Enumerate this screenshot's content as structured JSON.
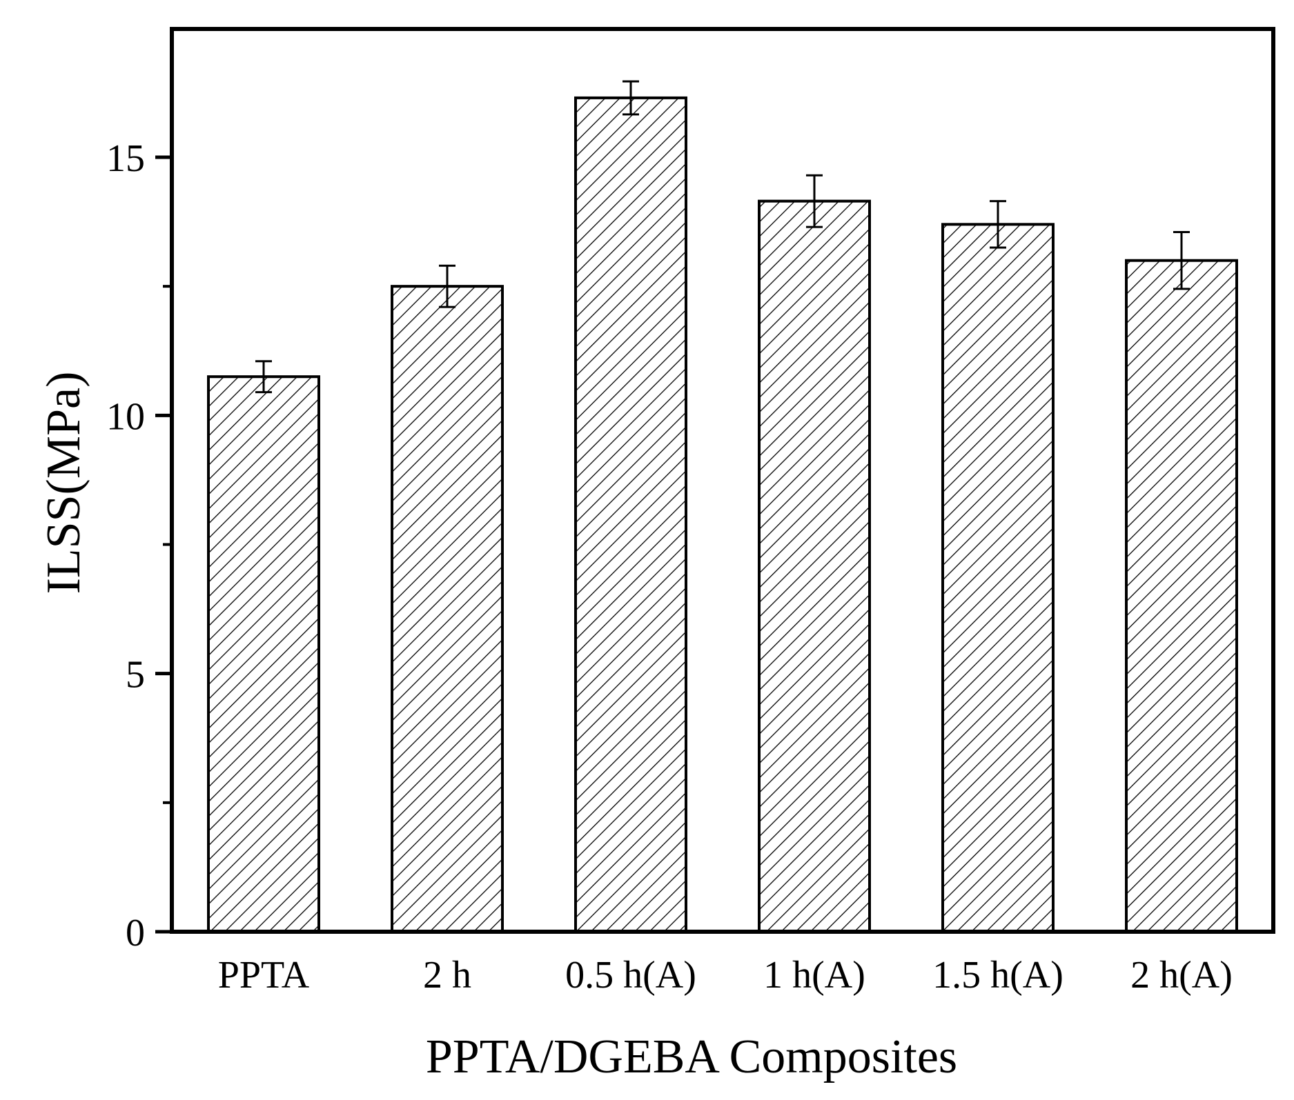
{
  "chart_data": {
    "type": "bar",
    "title": "",
    "xlabel": "PPTA/DGEBA Composites",
    "ylabel": "ILSS(MPa)",
    "categories": [
      "PPTA",
      "2 h",
      "0.5 h(A)",
      "1 h(A)",
      "1.5 h(A)",
      "2 h(A)"
    ],
    "values": [
      10.75,
      12.5,
      16.15,
      14.15,
      13.7,
      13.0
    ],
    "errors": [
      0.3,
      0.4,
      0.32,
      0.5,
      0.45,
      0.55
    ],
    "ylim": [
      0,
      17.5
    ],
    "yticks": [
      0,
      5,
      10,
      15
    ],
    "yticks_minor": [
      2.5,
      7.5,
      12.5
    ],
    "ytick_labels": [
      "0",
      "5",
      "10",
      "15"
    ],
    "bar_fill": "hatched",
    "grid": false,
    "colors": {
      "bar_stroke": "#000000",
      "hatch": "#000000",
      "background": "#ffffff"
    }
  }
}
